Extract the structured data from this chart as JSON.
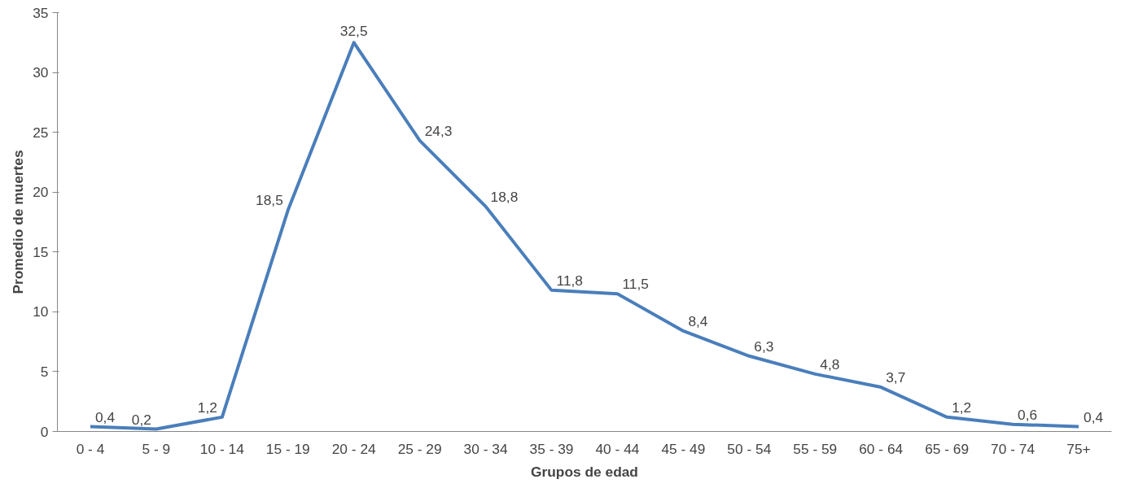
{
  "chart_data": {
    "type": "line",
    "xlabel": "Grupos de edad",
    "ylabel": "Promedio de muertes",
    "categories": [
      "0 - 4",
      "5 - 9",
      "10 - 14",
      "15 - 19",
      "20 - 24",
      "25 - 29",
      "30 - 34",
      "35 - 39",
      "40 - 44",
      "45 - 49",
      "50 - 54",
      "55 - 59",
      "60 - 64",
      "65 - 69",
      "70 - 74",
      "75+"
    ],
    "series": [
      {
        "color": "#4a7ebb",
        "values": [
          0.4,
          0.2,
          1.2,
          18.5,
          32.5,
          24.3,
          18.8,
          11.8,
          11.5,
          8.4,
          6.3,
          4.8,
          3.7,
          1.2,
          0.6,
          0.4
        ],
        "value_labels": [
          "0,4",
          "0,2",
          "1,2",
          "18,5",
          "32,5",
          "24,3",
          "18,8",
          "11,8",
          "11,5",
          "8,4",
          "6,3",
          "4,8",
          "3,7",
          "1,2",
          "0,6",
          "0,4"
        ]
      }
    ],
    "ylim": [
      0,
      35
    ],
    "yticks": [
      0,
      5,
      10,
      15,
      20,
      25,
      30,
      35
    ],
    "grid": false,
    "marker": "none",
    "line_style": "solid"
  }
}
